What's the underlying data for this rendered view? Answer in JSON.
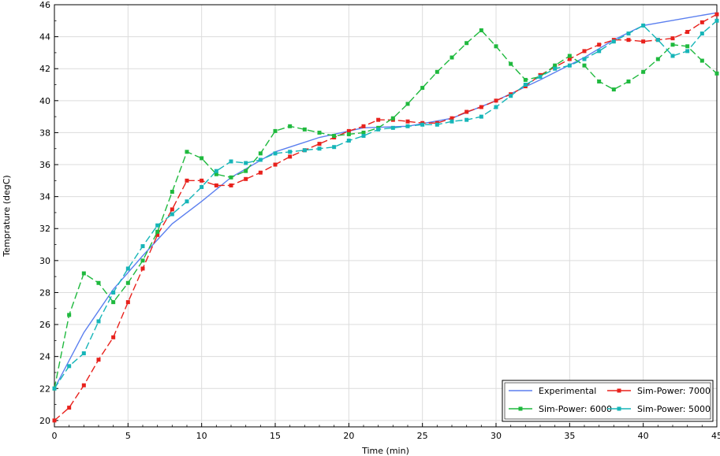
{
  "chart_data": {
    "type": "line",
    "xlabel": "Time (min)",
    "ylabel": "Temprature (degC)",
    "xlim": [
      0,
      45
    ],
    "ylim": [
      19.6,
      46
    ],
    "x_ticks": [
      0,
      5,
      10,
      15,
      20,
      25,
      30,
      35,
      40,
      45
    ],
    "y_ticks": [
      20,
      22,
      24,
      26,
      28,
      30,
      32,
      34,
      36,
      38,
      40,
      42,
      44,
      46
    ],
    "grid": true,
    "legend_placement": "bottom-right",
    "series": [
      {
        "name": "Experimental",
        "color": "#5b7fef",
        "style": "solid",
        "marker": "none",
        "x": [
          0,
          2,
          4,
          6,
          8,
          10,
          12,
          15,
          18,
          21,
          24,
          27,
          30,
          33,
          36,
          38,
          40,
          45
        ],
        "y": [
          22.0,
          25.5,
          28.2,
          30.3,
          32.3,
          33.7,
          35.2,
          36.8,
          37.7,
          38.3,
          38.4,
          38.9,
          40.0,
          41.3,
          42.7,
          43.8,
          44.7,
          45.5
        ]
      },
      {
        "name": "Sim-Power: 7000",
        "color": "#e8211c",
        "style": "dashed",
        "marker": "square",
        "x": [
          0,
          1,
          2,
          3,
          4,
          5,
          6,
          7,
          8,
          9,
          10,
          11,
          12,
          13,
          14,
          15,
          16,
          17,
          18,
          19,
          20,
          21,
          22,
          23,
          24,
          25,
          26,
          27,
          28,
          29,
          30,
          31,
          32,
          33,
          34,
          35,
          36,
          37,
          38,
          39,
          40,
          41,
          42,
          43,
          44,
          45
        ],
        "y": [
          20.0,
          20.8,
          22.2,
          23.8,
          25.2,
          27.4,
          29.5,
          31.6,
          33.2,
          35.0,
          35.0,
          34.7,
          34.7,
          35.1,
          35.5,
          36.0,
          36.5,
          36.9,
          37.3,
          37.7,
          38.1,
          38.4,
          38.8,
          38.8,
          38.7,
          38.6,
          38.6,
          38.9,
          39.3,
          39.6,
          40.0,
          40.4,
          40.9,
          41.6,
          42.1,
          42.6,
          43.1,
          43.5,
          43.8,
          43.8,
          43.7,
          43.8,
          43.9,
          44.3,
          44.9,
          45.4
        ]
      },
      {
        "name": "Sim-Power: 6000",
        "color": "#1fb93e",
        "style": "dashed",
        "marker": "square",
        "x": [
          0,
          1,
          2,
          3,
          4,
          5,
          6,
          7,
          8,
          9,
          10,
          11,
          12,
          13,
          14,
          15,
          16,
          17,
          18,
          19,
          20,
          21,
          22,
          23,
          24,
          25,
          26,
          27,
          28,
          29,
          30,
          31,
          32,
          33,
          34,
          35,
          36,
          37,
          38,
          39,
          40,
          41,
          42,
          43,
          44,
          45
        ],
        "y": [
          22.0,
          26.6,
          29.2,
          28.6,
          27.4,
          28.6,
          30.0,
          31.8,
          34.3,
          36.8,
          36.4,
          35.4,
          35.2,
          35.6,
          36.7,
          38.1,
          38.4,
          38.2,
          38.0,
          37.8,
          37.9,
          38.0,
          38.3,
          38.9,
          39.8,
          40.8,
          41.8,
          42.7,
          43.6,
          44.4,
          43.4,
          42.3,
          41.3,
          41.5,
          42.2,
          42.8,
          42.2,
          41.2,
          40.7,
          41.2,
          41.8,
          42.6,
          43.5,
          43.4,
          42.5,
          41.7
        ]
      },
      {
        "name": "Sim-Power: 5000",
        "color": "#16b5b8",
        "style": "dashed",
        "marker": "square",
        "x": [
          0,
          1,
          2,
          3,
          4,
          5,
          6,
          7,
          8,
          9,
          10,
          11,
          12,
          13,
          14,
          15,
          16,
          17,
          18,
          19,
          20,
          21,
          22,
          23,
          24,
          25,
          26,
          27,
          28,
          29,
          30,
          31,
          32,
          33,
          34,
          35,
          36,
          37,
          38,
          39,
          40,
          41,
          42,
          43,
          44,
          45
        ],
        "y": [
          22.0,
          23.4,
          24.2,
          26.2,
          28.0,
          29.5,
          30.9,
          32.2,
          32.9,
          33.7,
          34.6,
          35.6,
          36.2,
          36.1,
          36.3,
          36.7,
          36.8,
          36.9,
          37.0,
          37.1,
          37.5,
          37.8,
          38.2,
          38.3,
          38.4,
          38.5,
          38.5,
          38.7,
          38.8,
          39.0,
          39.6,
          40.3,
          41.0,
          41.5,
          42.0,
          42.2,
          42.6,
          43.1,
          43.7,
          44.2,
          44.7,
          43.8,
          42.8,
          43.1,
          44.2,
          45.0
        ]
      }
    ]
  }
}
